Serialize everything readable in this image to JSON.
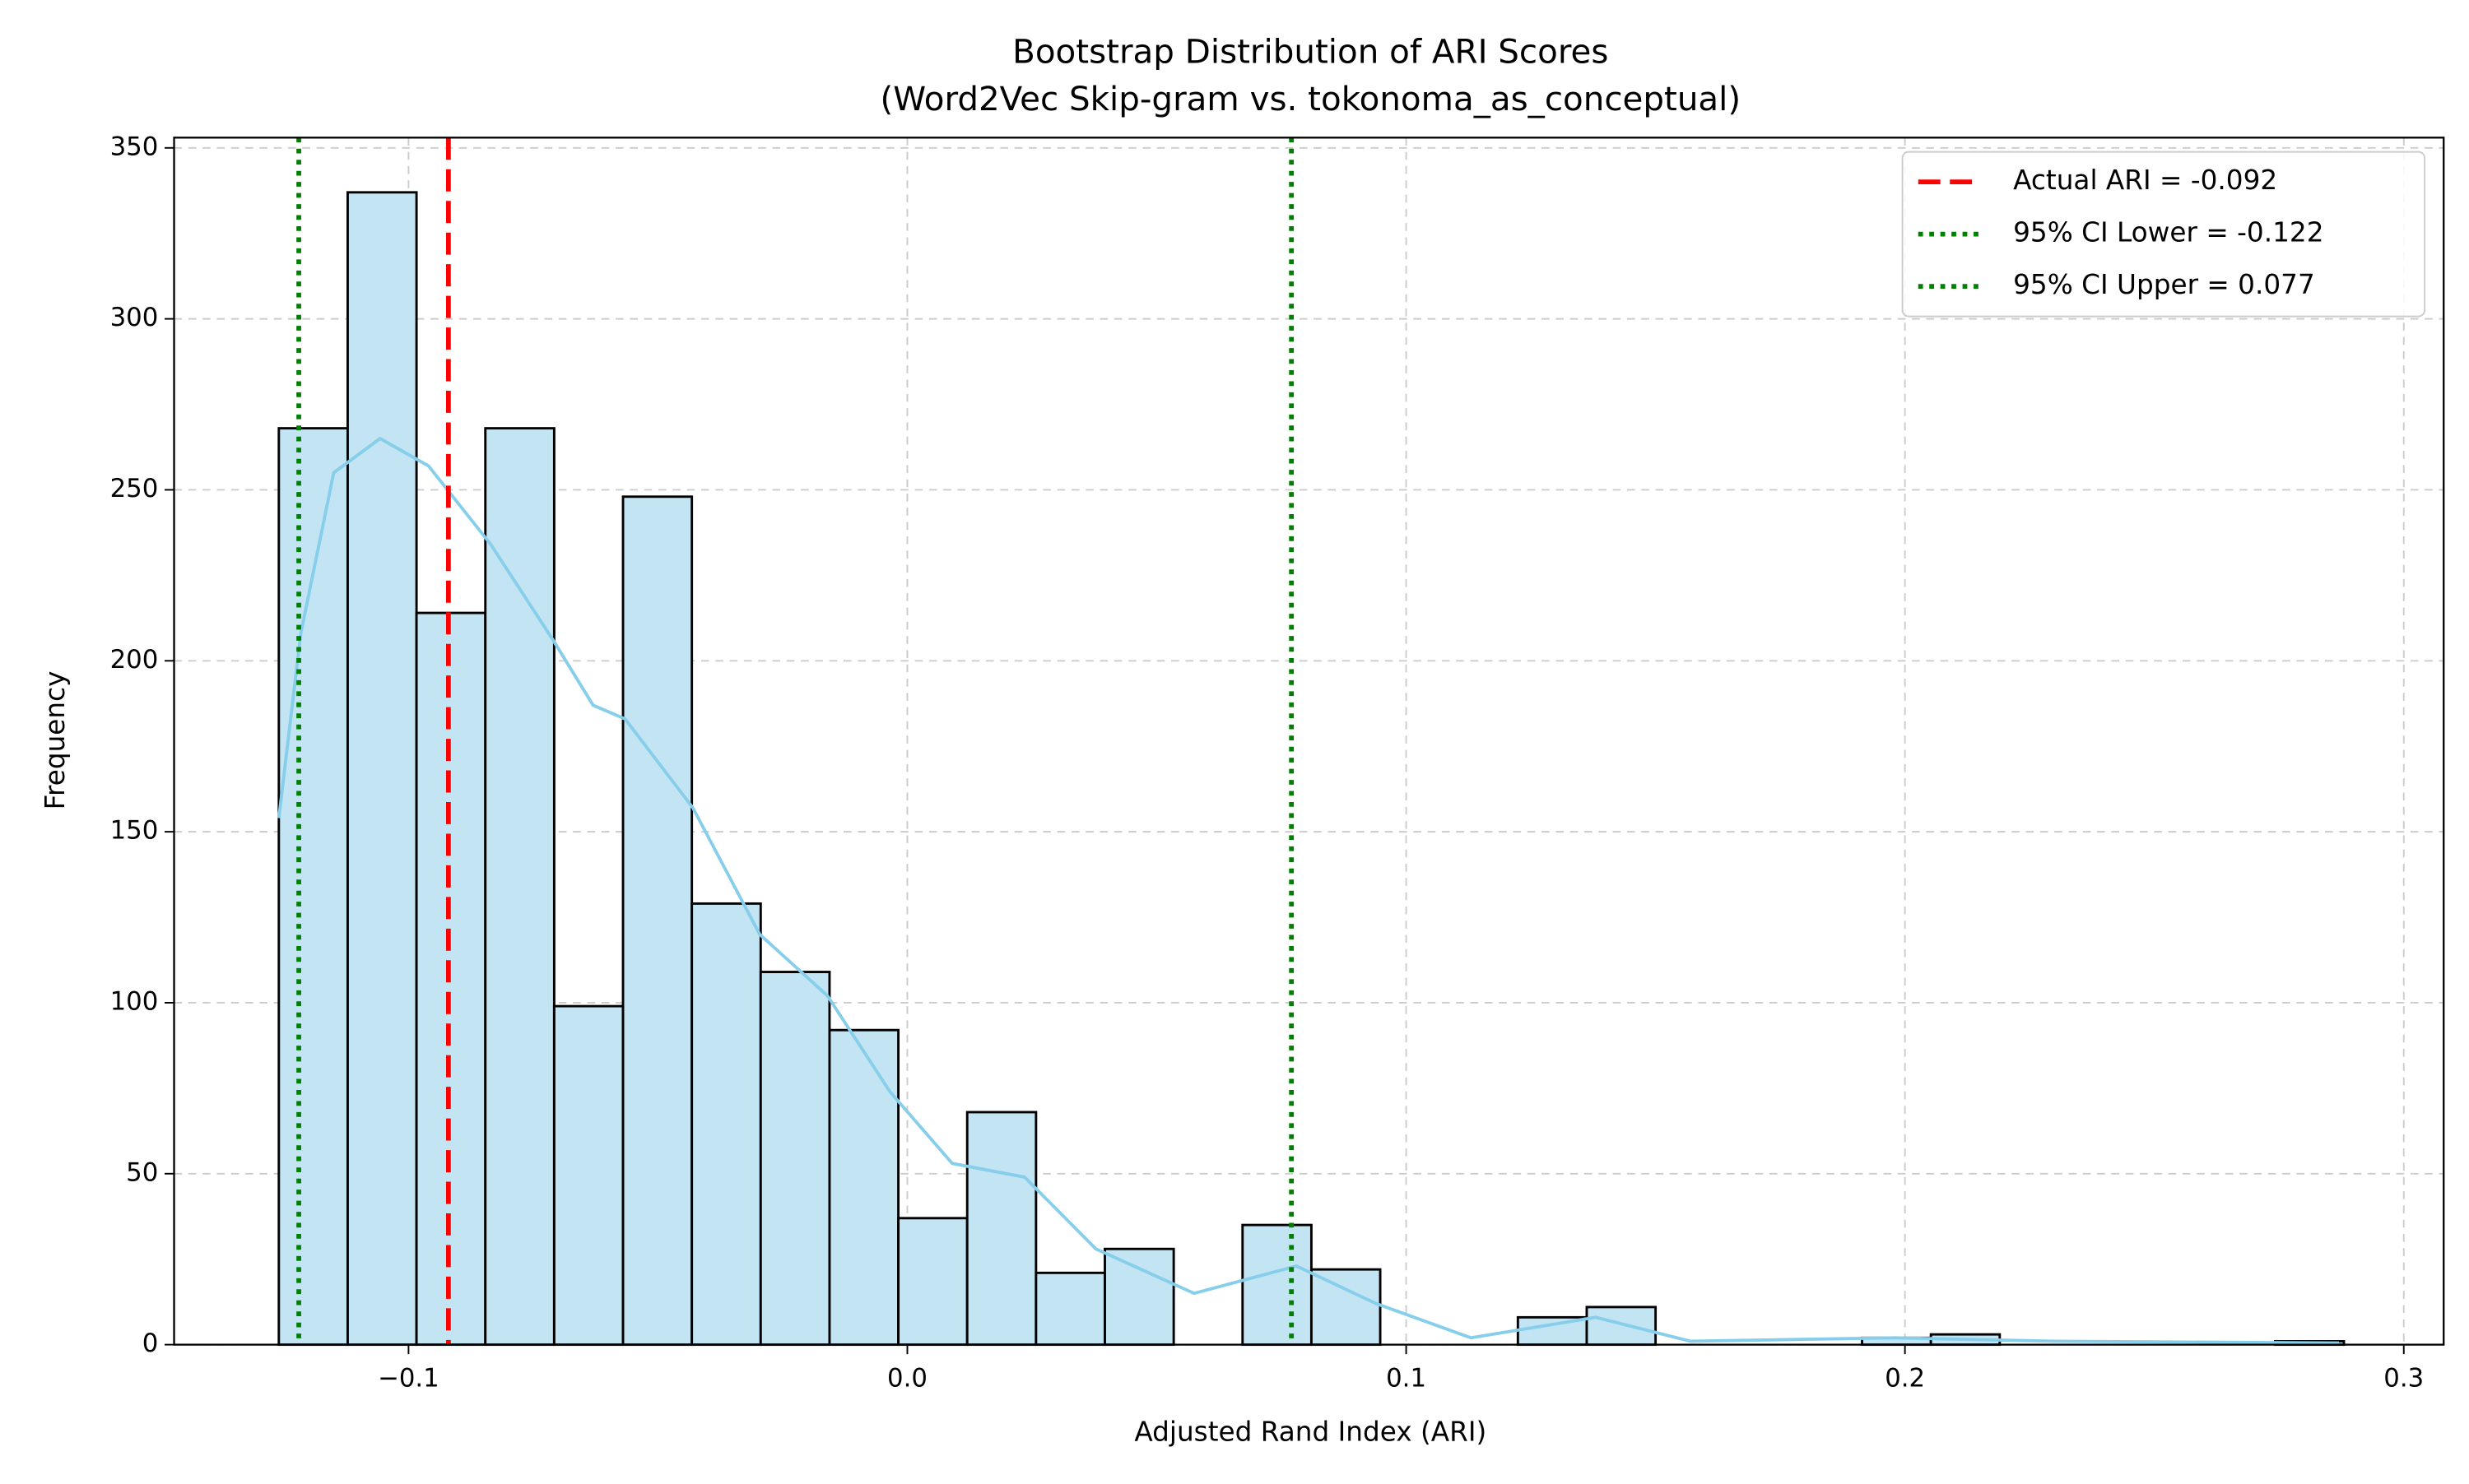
{
  "chart_data": {
    "type": "histogram",
    "title": "Bootstrap Distribution of ARI Scores",
    "subtitle": "(Word2Vec Skip-gram vs. tokonoma_as_conceptual)",
    "xlabel": "Adjusted Rand Index (ARI)",
    "ylabel": "Frequency",
    "bins": [
      -0.126,
      -0.1122,
      -0.0984,
      -0.0846,
      -0.0708,
      -0.057,
      -0.0432,
      -0.0294,
      -0.0156,
      -0.0018,
      0.012,
      0.0258,
      0.0396,
      0.0534,
      0.0672,
      0.081,
      0.0948,
      0.1086,
      0.1224,
      0.1362,
      0.15,
      0.1638,
      0.1776,
      0.1914,
      0.2052,
      0.219,
      0.2328,
      0.2466,
      0.2604,
      0.2742,
      0.288
    ],
    "values": [
      268,
      337,
      214,
      268,
      99,
      248,
      129,
      109,
      92,
      37,
      68,
      21,
      28,
      0,
      35,
      22,
      0,
      0,
      8,
      11,
      0,
      0,
      0,
      2,
      3,
      0,
      0,
      0,
      0,
      1
    ],
    "color": "#c2e4f3",
    "edgecolor": "#000000",
    "kde": {
      "color": "#87ceeb",
      "x": [
        -0.126,
        -0.1216,
        -0.115,
        -0.1057,
        -0.096,
        -0.0835,
        -0.071,
        -0.063,
        -0.0566,
        -0.043,
        -0.0296,
        -0.016,
        -0.0035,
        0.009,
        0.0235,
        0.0378,
        0.0575,
        0.078,
        0.094,
        0.113,
        0.138,
        0.157,
        0.198,
        0.23,
        0.287
      ],
      "y": [
        154,
        208,
        255,
        265,
        257,
        234,
        206,
        187,
        183,
        157,
        120,
        102,
        74,
        53,
        49,
        28,
        15,
        23,
        12,
        2,
        8,
        1,
        2,
        1,
        0.5
      ]
    },
    "vlines": [
      {
        "label": "Actual ARI = -0.092",
        "value": -0.092,
        "color": "#ff0000",
        "style": "dashed"
      },
      {
        "label": "95% CI Lower = -0.122",
        "value": -0.122,
        "color": "#008000",
        "style": "dotted"
      },
      {
        "label": "95% CI Upper = 0.077",
        "value": 0.077,
        "color": "#008000",
        "style": "dotted"
      }
    ],
    "xlim": [
      -0.147,
      0.308
    ],
    "ylim": [
      0,
      353
    ],
    "xticks": [
      {
        "value": -0.1,
        "label": "−0.1"
      },
      {
        "value": 0.0,
        "label": "0.0"
      },
      {
        "value": 0.1,
        "label": "0.1"
      },
      {
        "value": 0.2,
        "label": "0.2"
      },
      {
        "value": 0.3,
        "label": "0.3"
      }
    ],
    "yticks": [
      0,
      50,
      100,
      150,
      200,
      250,
      300,
      350
    ],
    "grid": true,
    "legend": "upper right"
  }
}
